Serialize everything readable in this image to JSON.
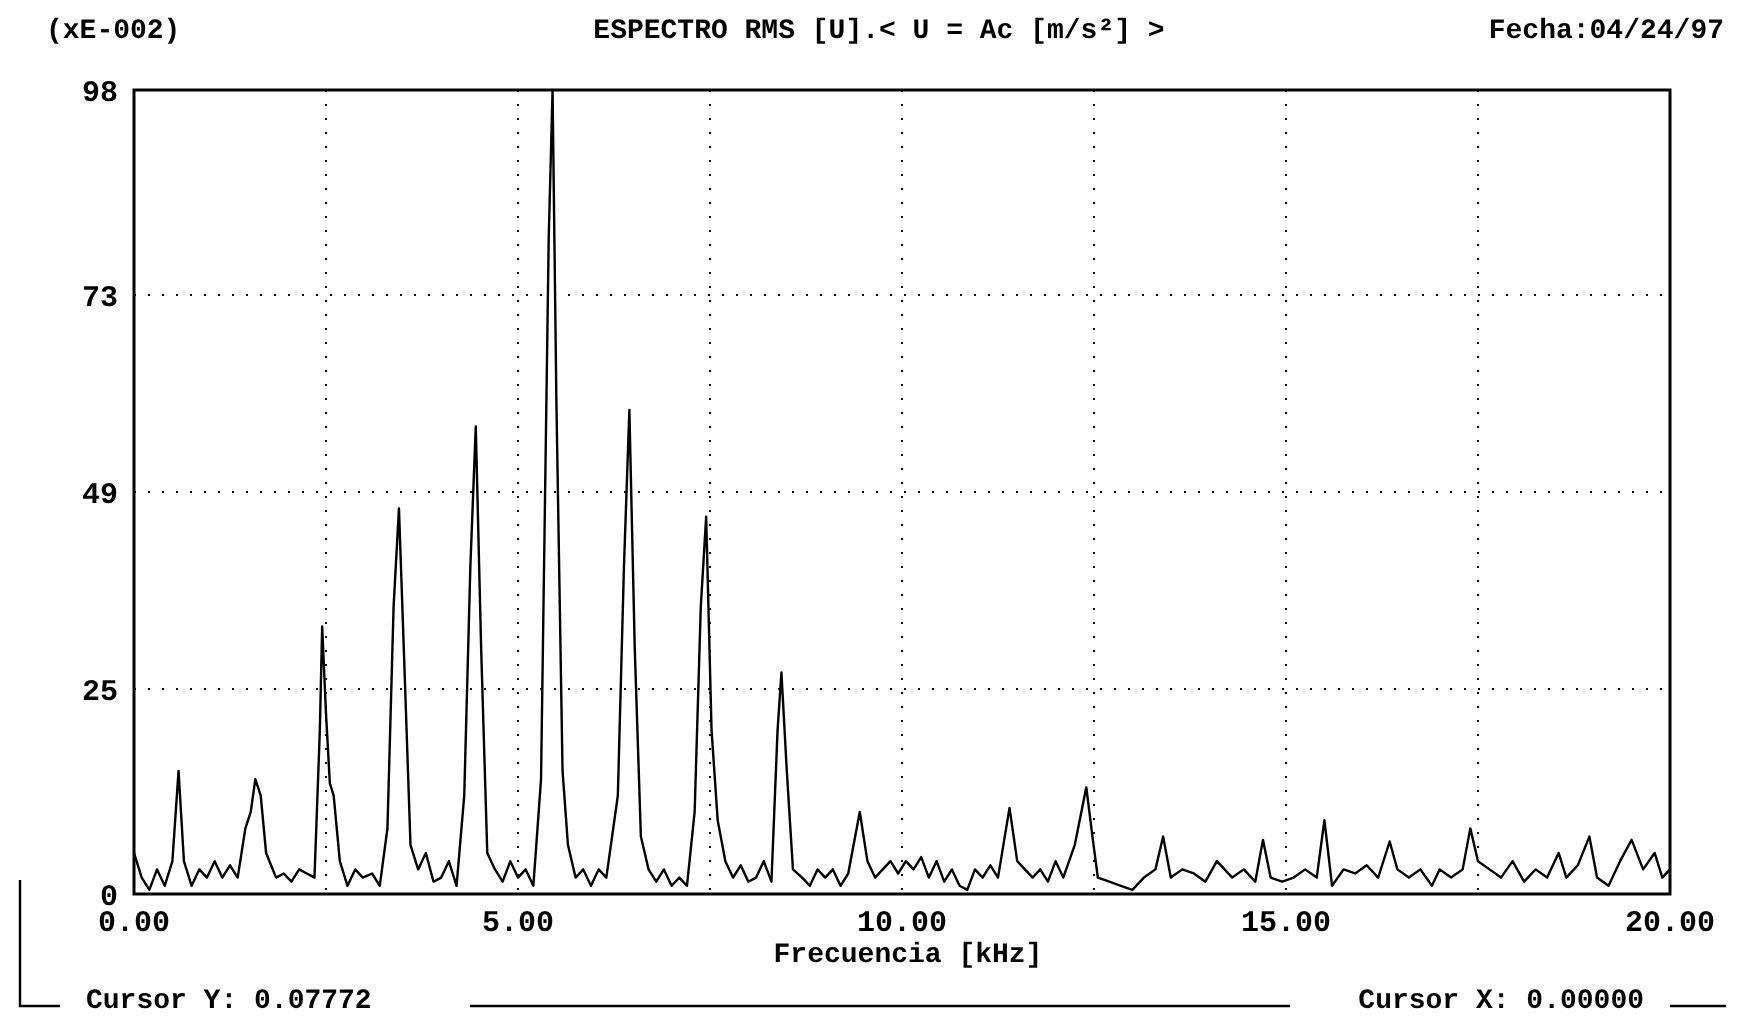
{
  "chart_data": {
    "type": "line",
    "title": "ESPECTRO RMS [U].< U = Ac [m/s²] >",
    "xlabel": "Frecuencia [kHz]",
    "annotations": [
      "(xE-002)",
      "Fecha:04/24/97",
      "Cursor Y: 0.07772",
      "Cursor X: 0.00000"
    ],
    "x": [
      0,
      0.1,
      0.2,
      0.3,
      0.4,
      0.5,
      0.58,
      0.65,
      0.75,
      0.85,
      0.95,
      1.05,
      1.15,
      1.25,
      1.35,
      1.45,
      1.52,
      1.58,
      1.65,
      1.72,
      1.85,
      1.95,
      2.05,
      2.15,
      2.25,
      2.35,
      2.42,
      2.45,
      2.5,
      2.55,
      2.6,
      2.68,
      2.78,
      2.88,
      2.98,
      3.1,
      3.2,
      3.3,
      3.38,
      3.45,
      3.52,
      3.6,
      3.7,
      3.8,
      3.9,
      4.0,
      4.1,
      4.2,
      4.3,
      4.38,
      4.45,
      4.52,
      4.6,
      4.7,
      4.8,
      4.9,
      5.0,
      5.1,
      5.2,
      5.3,
      5.4,
      5.45,
      5.5,
      5.58,
      5.65,
      5.75,
      5.85,
      5.95,
      6.05,
      6.15,
      6.3,
      6.38,
      6.45,
      6.52,
      6.6,
      6.7,
      6.8,
      6.9,
      7.0,
      7.1,
      7.2,
      7.3,
      7.38,
      7.45,
      7.52,
      7.6,
      7.7,
      7.8,
      7.9,
      8.0,
      8.1,
      8.2,
      8.3,
      8.38,
      8.43,
      8.5,
      8.58,
      8.7,
      8.8,
      8.9,
      9.0,
      9.1,
      9.2,
      9.3,
      9.45,
      9.55,
      9.65,
      9.75,
      9.85,
      9.95,
      10.05,
      10.15,
      10.25,
      10.35,
      10.45,
      10.55,
      10.65,
      10.75,
      10.85,
      10.95,
      11.05,
      11.15,
      11.25,
      11.4,
      11.5,
      11.6,
      11.7,
      11.8,
      11.9,
      12.0,
      12.1,
      12.25,
      12.4,
      12.48,
      12.55,
      12.7,
      12.85,
      13.0,
      13.15,
      13.3,
      13.4,
      13.5,
      13.65,
      13.8,
      13.95,
      14.1,
      14.2,
      14.3,
      14.45,
      14.6,
      14.7,
      14.8,
      14.95,
      15.1,
      15.25,
      15.4,
      15.5,
      15.6,
      15.75,
      15.9,
      16.05,
      16.2,
      16.35,
      16.45,
      16.6,
      16.75,
      16.9,
      17.0,
      17.15,
      17.3,
      17.4,
      17.5,
      17.65,
      17.8,
      17.95,
      18.1,
      18.25,
      18.4,
      18.55,
      18.65,
      18.8,
      18.95,
      19.05,
      19.2,
      19.35,
      19.5,
      19.65,
      19.8,
      19.9,
      20.0
    ],
    "series": [
      {
        "color": "#000000",
        "values": [
          5,
          2,
          0.5,
          3,
          1,
          4,
          15,
          4,
          1,
          3,
          2,
          4,
          2,
          3.5,
          2,
          8,
          10,
          14,
          12,
          5,
          2,
          2.5,
          1.5,
          3,
          2.5,
          2,
          20,
          32.6,
          22,
          13.5,
          12,
          4,
          1,
          3,
          2,
          2.5,
          1,
          8,
          35,
          47,
          28,
          6,
          3,
          5,
          1.5,
          2,
          4,
          1,
          12,
          40,
          57,
          30,
          5,
          3,
          1.5,
          4,
          2,
          3,
          1,
          14,
          80,
          98,
          60,
          15,
          6,
          2,
          3,
          1,
          3,
          2,
          12,
          40,
          59,
          30,
          7,
          3,
          1.5,
          3,
          1,
          2,
          1,
          10,
          35,
          46,
          20,
          9,
          4,
          2,
          3.5,
          1.5,
          2,
          4,
          1.5,
          20,
          27,
          15,
          3,
          2,
          1,
          3,
          2,
          3,
          1,
          2.5,
          10,
          4,
          2,
          3,
          4,
          2.5,
          4,
          3,
          4.5,
          2,
          4,
          1.5,
          3,
          1,
          0.5,
          3,
          2,
          3.5,
          2,
          10.5,
          4,
          3,
          2,
          3,
          1.5,
          4,
          2,
          6,
          13,
          7,
          2,
          1.5,
          1,
          0.5,
          2,
          3,
          7,
          2,
          3,
          2.5,
          1.5,
          4,
          3,
          2,
          3,
          1.5,
          6.6,
          2,
          1.5,
          2,
          3,
          2,
          9,
          1,
          3,
          2.5,
          3.5,
          2,
          6.4,
          3,
          2,
          3,
          1,
          3,
          2,
          3,
          8,
          4,
          3,
          2,
          4,
          1.5,
          3,
          2,
          5,
          2,
          3.5,
          7,
          2,
          1,
          4,
          6.6,
          3,
          5,
          2,
          3
        ]
      }
    ],
    "xlim": [
      0,
      20
    ],
    "ylim": [
      0,
      98
    ],
    "xticks": [
      {
        "value": 0,
        "label": "0.00"
      },
      {
        "value": 2.5,
        "label": null
      },
      {
        "value": 5,
        "label": "5.00"
      },
      {
        "value": 7.5,
        "label": null
      },
      {
        "value": 10,
        "label": "10.00"
      },
      {
        "value": 12.5,
        "label": null
      },
      {
        "value": 15,
        "label": "15.00"
      },
      {
        "value": 17.5,
        "label": null
      },
      {
        "value": 20,
        "label": "20.00"
      }
    ],
    "yticks": [
      0,
      25,
      49,
      73,
      98
    ],
    "grid": true
  }
}
